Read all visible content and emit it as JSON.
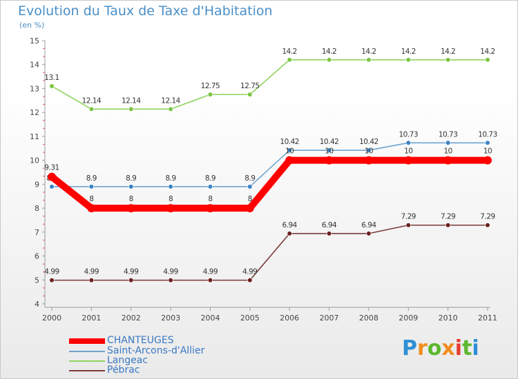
{
  "title": "Evolution du Taux de Taxe d'Habitation",
  "subtitle": "(en %)",
  "logo": {
    "text": "Proxiti",
    "letters": [
      "P",
      "r",
      "o",
      "x",
      "i",
      "t",
      "i"
    ],
    "colors": [
      "#2f8fd6",
      "#f28c1e",
      "#5cb82e",
      "#f28c1e",
      "#e63a2e",
      "#5cb82e",
      "#2f8fd6"
    ]
  },
  "chart_data": {
    "type": "line",
    "title": "Evolution du Taux de Taxe d'Habitation",
    "ylabel": "(en %)",
    "x": [
      "2000",
      "2001",
      "2002",
      "2003",
      "2004",
      "2005",
      "2006",
      "2007",
      "2008",
      "2009",
      "2010",
      "2011"
    ],
    "ylim": [
      4,
      15
    ],
    "yticks": [
      "4",
      "5",
      "6",
      "7",
      "8",
      "9",
      "10",
      "11",
      "12",
      "13",
      "14",
      "15"
    ],
    "grid": false,
    "legend_position": "bottom-left",
    "series": [
      {
        "name": "CHANTEUGES",
        "color": "#ff0000",
        "values": [
          9.31,
          8,
          8,
          8,
          8,
          8,
          10,
          10,
          10,
          10,
          10,
          10
        ],
        "labels": [
          "9.31",
          "8",
          "8",
          "8",
          "8",
          "8",
          "10",
          "10",
          "10",
          "10",
          "10",
          "10"
        ]
      },
      {
        "name": "Saint-Arcons-d'Allier",
        "color": "#6fa4cf",
        "point_color": "#3a82c4",
        "values": [
          8.9,
          8.9,
          8.9,
          8.9,
          8.9,
          8.9,
          10.42,
          10.42,
          10.42,
          10.73,
          10.73,
          10.73
        ],
        "labels": [
          "8.9",
          "8.9",
          "8.9",
          "8.9",
          "8.9",
          "8.9",
          "10.42",
          "10.42",
          "10.42",
          "10.73",
          "10.73",
          "10.73"
        ]
      },
      {
        "name": "Langeac",
        "color": "#8fd35f",
        "point_color": "#7cc443",
        "values": [
          13.1,
          12.14,
          12.14,
          12.14,
          12.75,
          12.75,
          14.2,
          14.2,
          14.2,
          14.2,
          14.2,
          14.2
        ],
        "labels": [
          "13.1",
          "12.14",
          "12.14",
          "12.14",
          "12.75",
          "12.75",
          "14.2",
          "14.2",
          "14.2",
          "14.2",
          "14.2",
          "14.2"
        ]
      },
      {
        "name": "Pébrac",
        "color": "#7a3a3a",
        "point_color": "#6b1f1f",
        "values": [
          4.99,
          4.99,
          4.99,
          4.99,
          4.99,
          4.99,
          6.94,
          6.94,
          6.94,
          7.29,
          7.29,
          7.29
        ],
        "labels": [
          "4.99",
          "4.99",
          "4.99",
          "4.99",
          "4.99",
          "4.99",
          "6.94",
          "6.94",
          "6.94",
          "7.29",
          "7.29",
          "7.29"
        ]
      }
    ]
  }
}
